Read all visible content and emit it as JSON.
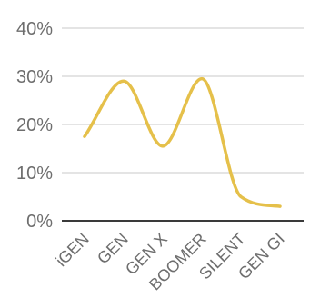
{
  "chart_data": {
    "type": "line",
    "categories": [
      "iGEN",
      "GEN",
      "GEN X",
      "BOOMER",
      "SILENT",
      "GEN GI"
    ],
    "series": [
      {
        "values": [
          17.5,
          29,
          15.5,
          29.5,
          5,
          3
        ],
        "color": "#e5c04a"
      }
    ],
    "y_ticks": [
      "0%",
      "10%",
      "20%",
      "30%",
      "40%"
    ],
    "ylim": [
      0,
      40
    ],
    "grid": true,
    "smooth": true
  }
}
